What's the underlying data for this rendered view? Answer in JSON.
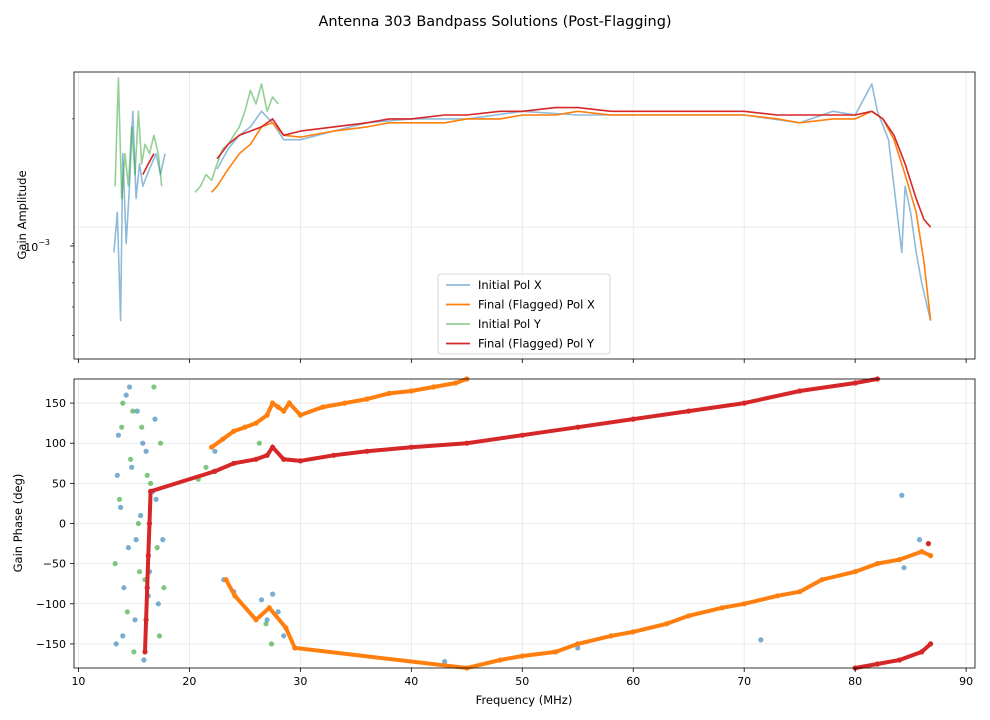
{
  "figure_title": "Antenna 303 Bandpass Solutions (Post-Flagging)",
  "chart_data": [
    {
      "type": "line",
      "title": "",
      "xlabel": "",
      "ylabel": "Gain Amplitude",
      "yscale": "log",
      "xlim": [
        9.6,
        90.8
      ],
      "ylim": [
        0.00043,
        0.0027
      ],
      "ytick_label": "10",
      "ytick_exponent": "−3",
      "grid": true,
      "legend_position": "lower-center",
      "series": [
        {
          "name": "Initial Pol X",
          "color": "#1f77b4",
          "opacity": 0.5,
          "segments": [
            {
              "x": [
                13.2,
                13.5,
                13.8,
                14.0,
                14.3,
                14.6,
                14.9,
                15.2,
                15.5,
                15.8,
                16.2,
                16.6,
                17.0,
                17.4,
                17.8
              ],
              "y": [
                0.00085,
                0.0011,
                0.00055,
                0.0016,
                0.0009,
                0.0013,
                0.0021,
                0.0012,
                0.0015,
                0.0013,
                0.0014,
                0.0015,
                0.0016,
                0.0014,
                0.0016
              ]
            },
            {
              "x": [
                22.5,
                23.5,
                24.5,
                25.5,
                26.5,
                27.5,
                28.5,
                30,
                33,
                36,
                40,
                45,
                50,
                55,
                60,
                65,
                70,
                75,
                78,
                80,
                81.5,
                82,
                83,
                84.2,
                84.5,
                85,
                85.5,
                86,
                86.5,
                86.8
              ],
              "y": [
                0.00145,
                0.00165,
                0.0018,
                0.0019,
                0.0021,
                0.00195,
                0.00175,
                0.00175,
                0.00185,
                0.00195,
                0.002,
                0.002,
                0.0021,
                0.00205,
                0.00205,
                0.00205,
                0.00205,
                0.00195,
                0.0021,
                0.00205,
                0.0025,
                0.0021,
                0.00175,
                0.00085,
                0.0013,
                0.0011,
                0.00085,
                0.0007,
                0.0006,
                0.00055
              ]
            }
          ]
        },
        {
          "name": "Final (Flagged) Pol X",
          "color": "#ff7f0e",
          "opacity": 1,
          "segments": [
            {
              "x": [
                22.0,
                22.5,
                23.5,
                24.5,
                25.5,
                26.5,
                27.5,
                28.5,
                30,
                33,
                36,
                38,
                40,
                43,
                45,
                48,
                50,
                53,
                55,
                58,
                60,
                63,
                65,
                68,
                70,
                73,
                75,
                78,
                80,
                81.5,
                82.5,
                83.5,
                84.5,
                85.5,
                86.2,
                86.8
              ],
              "y": [
                0.00125,
                0.0013,
                0.00145,
                0.0016,
                0.0017,
                0.0019,
                0.00195,
                0.0018,
                0.00178,
                0.00185,
                0.0019,
                0.00195,
                0.00195,
                0.00195,
                0.002,
                0.002,
                0.00205,
                0.00205,
                0.0021,
                0.00205,
                0.00205,
                0.00205,
                0.00205,
                0.00205,
                0.00205,
                0.002,
                0.00195,
                0.002,
                0.002,
                0.0021,
                0.002,
                0.00175,
                0.0014,
                0.0011,
                0.0008,
                0.00055
              ]
            }
          ]
        },
        {
          "name": "Initial Pol Y",
          "color": "#2ca02c",
          "opacity": 0.5,
          "segments": [
            {
              "x": [
                13.3,
                13.6,
                13.9,
                14.2,
                14.5,
                14.8,
                15.1,
                15.4,
                15.7,
                16.0,
                16.4,
                16.8,
                17.2,
                17.5
              ],
              "y": [
                0.0013,
                0.0026,
                0.0012,
                0.0016,
                0.0013,
                0.0019,
                0.0014,
                0.0021,
                0.0015,
                0.0017,
                0.0016,
                0.0018,
                0.0016,
                0.0013
              ]
            },
            {
              "x": [
                20.5,
                21.0,
                21.5,
                22.0,
                22.5,
                23.0,
                23.5,
                24.0,
                24.5,
                25.0,
                25.5,
                26.0,
                26.5,
                27.0,
                27.5,
                28.0
              ],
              "y": [
                0.00125,
                0.0013,
                0.0014,
                0.00135,
                0.0015,
                0.00165,
                0.0017,
                0.0018,
                0.0019,
                0.0021,
                0.0024,
                0.0022,
                0.0025,
                0.0021,
                0.0023,
                0.0022
              ]
            }
          ]
        },
        {
          "name": "Final (Flagged) Pol Y",
          "color": "#d62728",
          "opacity": 1,
          "segments": [
            {
              "x": [
                15.8,
                16.3,
                16.8
              ],
              "y": [
                0.0014,
                0.0015,
                0.0016
              ]
            },
            {
              "x": [
                22.5,
                23.5,
                24.5,
                25.5,
                26.5,
                27.5,
                28.5,
                30,
                33,
                36,
                38,
                40,
                43,
                45,
                48,
                50,
                53,
                55,
                58,
                60,
                63,
                65,
                68,
                70,
                73,
                75,
                78,
                80,
                81.5,
                82.5,
                83.5,
                84.5,
                85.5,
                86.2,
                86.8
              ],
              "y": [
                0.00155,
                0.0017,
                0.0018,
                0.00185,
                0.0019,
                0.002,
                0.0018,
                0.00185,
                0.0019,
                0.00195,
                0.002,
                0.002,
                0.00205,
                0.00205,
                0.0021,
                0.0021,
                0.00215,
                0.00215,
                0.0021,
                0.0021,
                0.0021,
                0.0021,
                0.0021,
                0.0021,
                0.00205,
                0.00205,
                0.00205,
                0.00205,
                0.0021,
                0.002,
                0.0018,
                0.0015,
                0.0012,
                0.00105,
                0.001
              ]
            }
          ]
        }
      ]
    },
    {
      "type": "scatter",
      "title": "",
      "xlabel": "Frequency (MHz)",
      "ylabel": "Gain Phase (deg)",
      "xlim": [
        9.6,
        90.8
      ],
      "ylim": [
        -180,
        180
      ],
      "xticks": [
        10,
        20,
        30,
        40,
        50,
        60,
        70,
        80,
        90
      ],
      "yticks": [
        -150,
        -100,
        -50,
        0,
        50,
        100,
        150
      ],
      "ytick_labels": [
        "−150",
        "−100",
        "−50",
        "0",
        "50",
        "100",
        "150"
      ],
      "grid": true,
      "series": [
        {
          "name": "Initial Pol X",
          "color": "#1f77b4",
          "opacity": 0.6,
          "x": [
            13.4,
            13.6,
            13.8,
            14.1,
            14.3,
            14.5,
            14.8,
            15.1,
            15.3,
            15.6,
            15.9,
            16.1,
            16.4,
            16.7,
            16.9,
            17.2,
            13.5,
            14.0,
            14.6,
            15.2,
            15.8,
            16.3,
            17.0,
            17.6,
            22.3,
            23.1,
            24.0,
            26.5,
            27.0,
            27.5,
            28.0,
            28.5,
            43.0,
            55.0,
            71.5,
            84.2,
            84.4,
            85.8
          ],
          "y": [
            -150,
            110,
            20,
            -80,
            160,
            -30,
            70,
            -120,
            140,
            10,
            -170,
            90,
            -60,
            40,
            130,
            -100,
            60,
            -140,
            170,
            -20,
            100,
            -90,
            30,
            -20,
            90,
            -70,
            -85,
            -95,
            -120,
            -88,
            -110,
            -140,
            -172,
            -155,
            -145,
            35,
            -55,
            -20
          ]
        },
        {
          "name": "Final (Flagged) Pol X",
          "color": "#ff7f0e",
          "opacity": 1,
          "x": [
            22.0,
            23.0,
            24.0,
            25.0,
            26.0,
            27.0,
            27.5,
            28.0,
            28.5,
            29.0,
            30.0,
            32.0,
            34.0,
            36.0,
            38.0,
            40.0,
            42.0,
            44.0,
            45.0,
            23.3,
            24.1,
            26.0,
            27.2,
            28.7,
            29.5,
            45.0,
            48.0,
            50.0,
            53.0,
            55.0,
            58.0,
            60.0,
            63.0,
            65.0,
            68.0,
            70.0,
            73.0,
            75.0,
            77.0,
            80.0,
            82.0,
            84.0,
            86.0,
            86.8
          ],
          "y": [
            95,
            105,
            115,
            120,
            125,
            135,
            150,
            145,
            140,
            150,
            135,
            145,
            150,
            155,
            162,
            165,
            170,
            175,
            180,
            -70,
            -90,
            -120,
            -105,
            -130,
            -155,
            -180,
            -170,
            -165,
            -160,
            -150,
            -140,
            -135,
            -125,
            -115,
            -105,
            -100,
            -90,
            -85,
            -70,
            -60,
            -50,
            -45,
            -35,
            -40
          ]
        },
        {
          "name": "Initial Pol Y",
          "color": "#2ca02c",
          "opacity": 0.6,
          "x": [
            13.3,
            13.7,
            14.0,
            14.4,
            14.7,
            15.0,
            15.4,
            15.7,
            16.0,
            16.5,
            16.8,
            17.1,
            17.4,
            17.7,
            13.9,
            14.9,
            15.5,
            16.2,
            17.3,
            20.8,
            21.5,
            22.2,
            26.3,
            26.9,
            27.4
          ],
          "y": [
            -50,
            30,
            150,
            -110,
            80,
            -160,
            0,
            120,
            -70,
            50,
            170,
            -30,
            100,
            -80,
            120,
            140,
            -60,
            60,
            -140,
            55,
            70,
            65,
            100,
            -125,
            -150
          ]
        },
        {
          "name": "Final (Flagged) Pol Y",
          "color": "#d62728",
          "opacity": 1,
          "x": [
            16.0,
            16.1,
            16.2,
            16.3,
            16.4,
            16.5,
            22.3,
            24.0,
            26.0,
            27.0,
            27.5,
            28.5,
            30.0,
            33.0,
            36.0,
            40.0,
            45.0,
            50.0,
            55.0,
            60.0,
            65.0,
            70.0,
            75.0,
            80.0,
            82.0,
            80.0,
            82.0,
            84.0,
            86.0,
            86.8,
            86.6
          ],
          "y": [
            -160,
            -120,
            -80,
            -40,
            0,
            40,
            65,
            75,
            80,
            85,
            95,
            80,
            78,
            85,
            90,
            95,
            100,
            110,
            120,
            130,
            140,
            150,
            165,
            175,
            180,
            -180,
            -175,
            -170,
            -160,
            -150,
            -25
          ]
        }
      ]
    }
  ]
}
